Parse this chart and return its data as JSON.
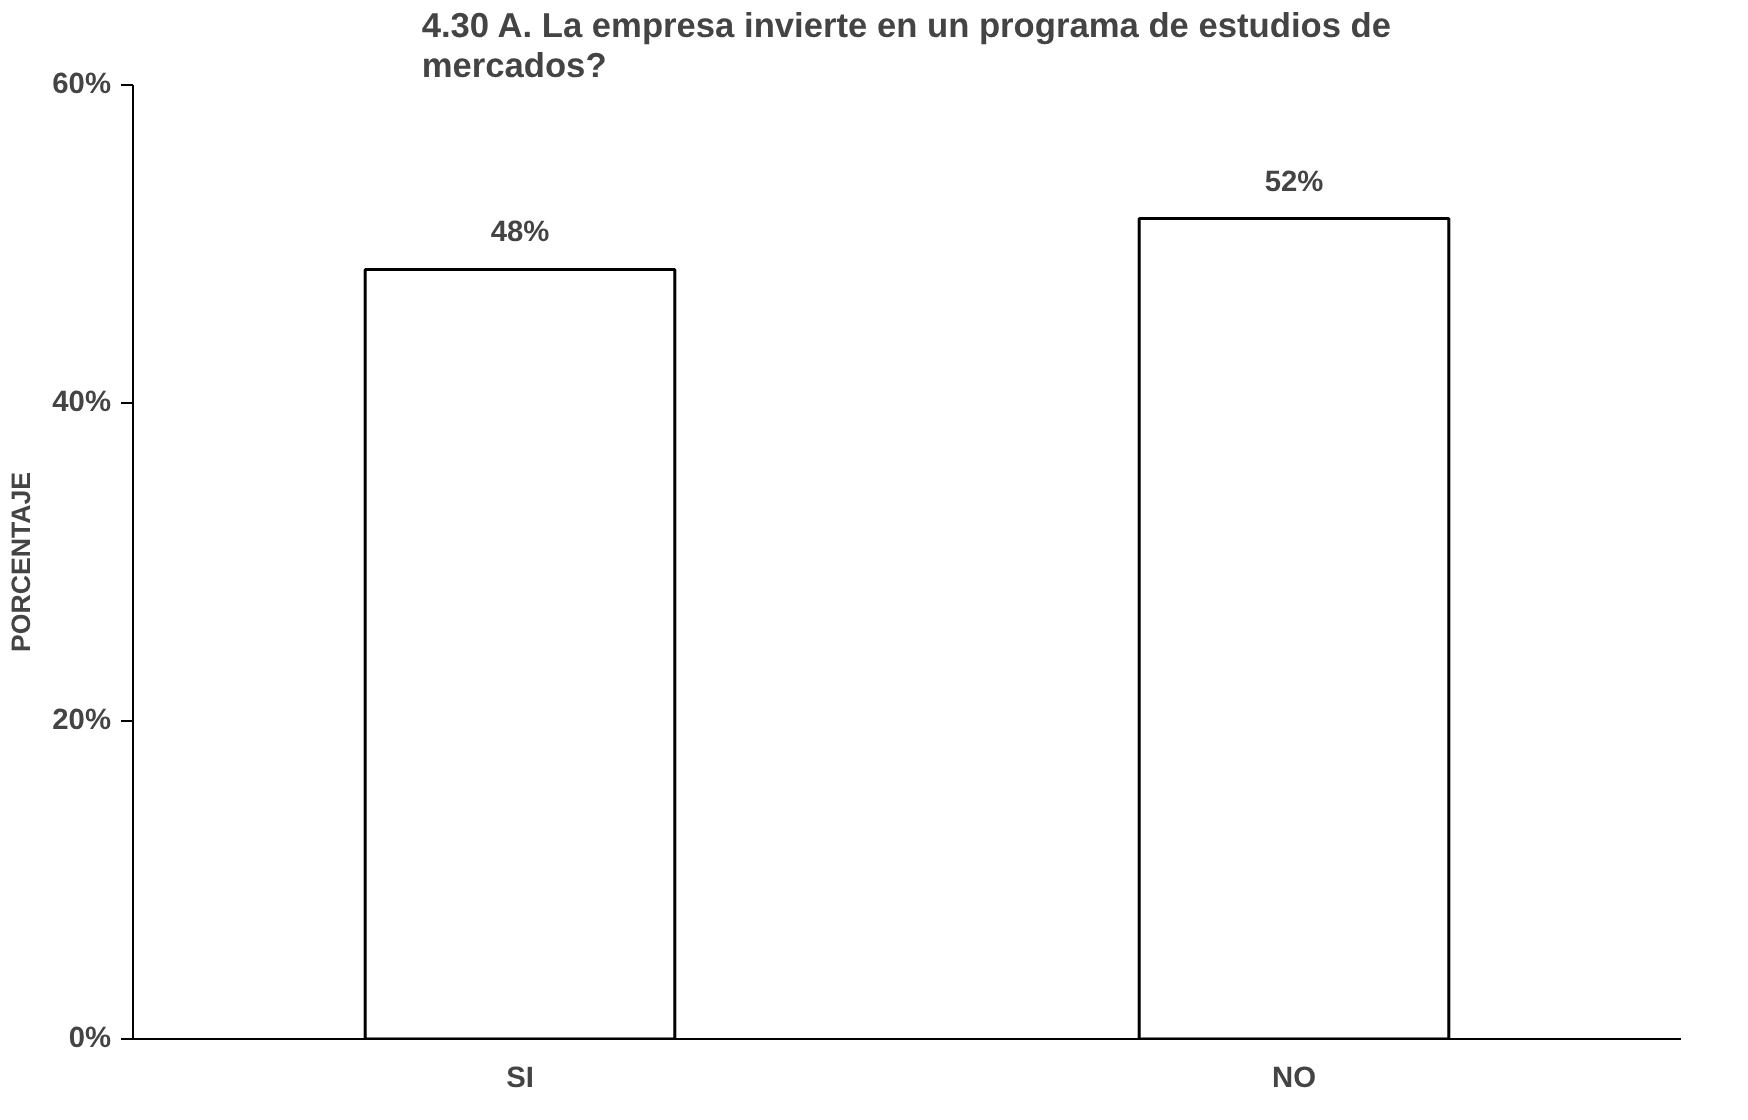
{
  "chart_data": {
    "type": "bar",
    "title": "4.30 A. La empresa invierte en un programa de estudios de mercados?",
    "ylabel": "PORCENTAJE",
    "categories": [
      "SI",
      "NO"
    ],
    "values": [
      48.4,
      51.6
    ],
    "value_labels": [
      "48%",
      "52%"
    ],
    "color": "#ffffff",
    "ylim": [
      0,
      60
    ],
    "yticks": [
      {
        "value": 0,
        "label": "0%"
      },
      {
        "value": 20,
        "label": "20%"
      },
      {
        "value": 40,
        "label": "40%"
      },
      {
        "value": 60,
        "label": "60%"
      }
    ],
    "grid": false
  }
}
